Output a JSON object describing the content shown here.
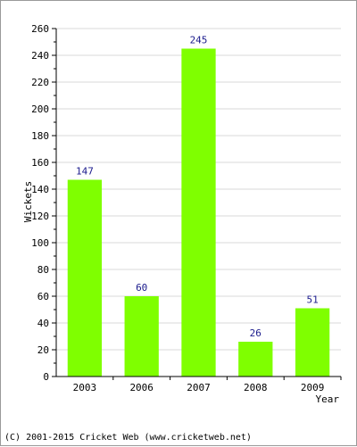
{
  "chart_data": {
    "type": "bar",
    "categories": [
      "2003",
      "2006",
      "2007",
      "2008",
      "2009"
    ],
    "values": [
      147,
      60,
      245,
      26,
      51
    ],
    "title": "",
    "xlabel": "Year",
    "ylabel": "Wickets",
    "ylim": [
      0,
      260
    ],
    "y_ticks": [
      0,
      20,
      40,
      60,
      80,
      100,
      120,
      140,
      160,
      180,
      200,
      220,
      240,
      260
    ],
    "grid": true,
    "bar_color": "#7fff00",
    "label_color": "#1a1a8c",
    "grid_color": "#d8d8d8"
  },
  "footer": "(C) 2001-2015 Cricket Web (www.cricketweb.net)"
}
